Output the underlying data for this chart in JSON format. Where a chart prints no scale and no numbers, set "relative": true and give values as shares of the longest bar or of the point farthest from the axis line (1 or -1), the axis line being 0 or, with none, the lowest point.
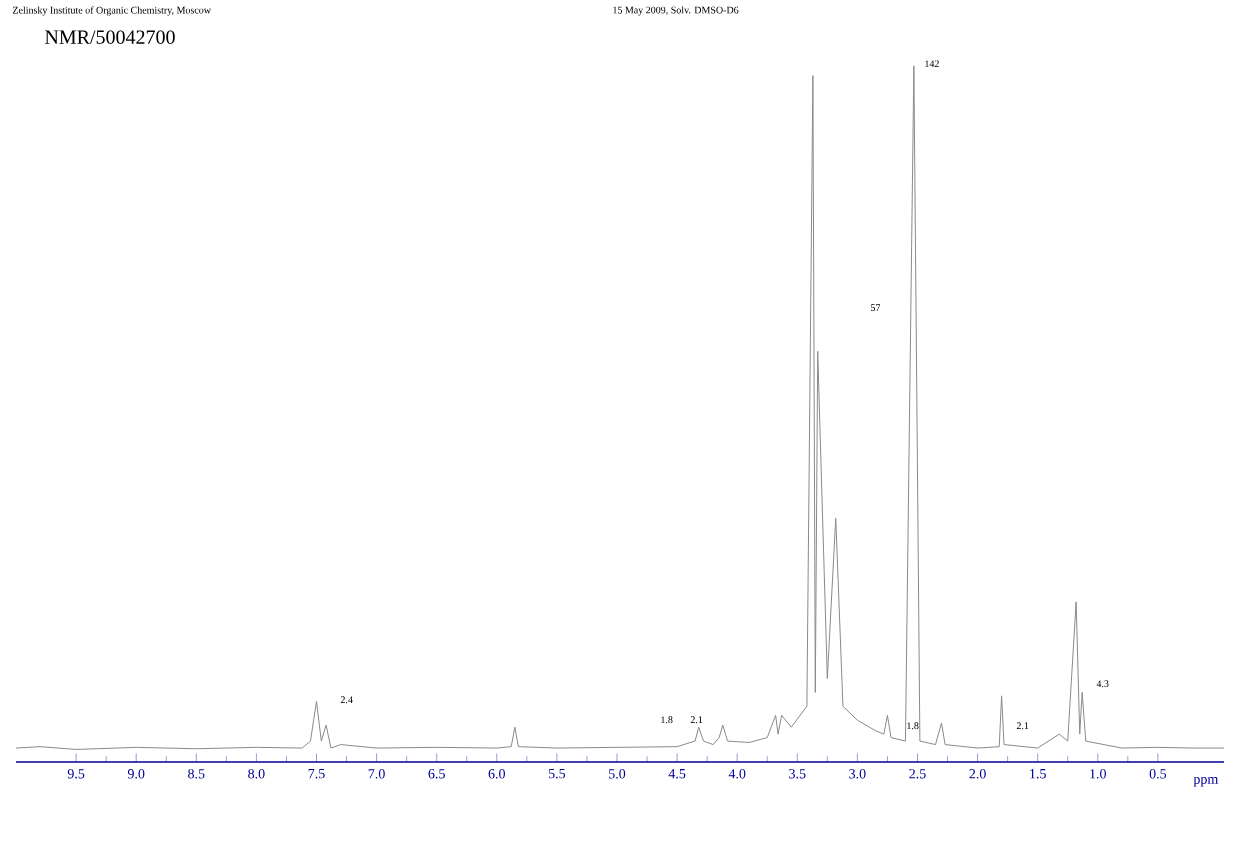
{
  "chart_data": {
    "type": "line",
    "title": "NMR/50042700",
    "relative": true,
    "xlabel": "ppm",
    "xlim": [
      10.0,
      -0.05
    ],
    "xticks": [
      {
        "value": 9.5,
        "label": "9.5"
      },
      {
        "value": 9.0,
        "label": "9.0"
      },
      {
        "value": 8.5,
        "label": "8.5"
      },
      {
        "value": 8.0,
        "label": "8.0"
      },
      {
        "value": 7.5,
        "label": "7.5"
      },
      {
        "value": 7.0,
        "label": "7.0"
      },
      {
        "value": 6.5,
        "label": "6.5"
      },
      {
        "value": 6.0,
        "label": "6.0"
      },
      {
        "value": 5.5,
        "label": "5.5"
      },
      {
        "value": 5.0,
        "label": "5.0"
      },
      {
        "value": 4.5,
        "label": "4.5"
      },
      {
        "value": 4.0,
        "label": "4.0"
      },
      {
        "value": 3.5,
        "label": "3.5"
      },
      {
        "value": 3.0,
        "label": "3.0"
      },
      {
        "value": 2.5,
        "label": "2.5"
      },
      {
        "value": 2.0,
        "label": "2.0"
      },
      {
        "value": 1.5,
        "label": "1.5"
      },
      {
        "value": 1.0,
        "label": "1.0"
      },
      {
        "value": 0.5,
        "label": "0.5"
      }
    ],
    "series": [
      {
        "color": "#8a8a8a",
        "x": [
          10.0,
          9.8,
          9.5,
          9.0,
          8.5,
          8.0,
          7.62,
          7.55,
          7.5,
          7.46,
          7.42,
          7.38,
          7.3,
          7.0,
          6.5,
          6.0,
          5.88,
          5.85,
          5.82,
          5.5,
          5.0,
          4.5,
          4.35,
          4.32,
          4.28,
          4.2,
          4.15,
          4.12,
          4.08,
          3.9,
          3.75,
          3.68,
          3.66,
          3.63,
          3.55,
          3.42,
          3.37,
          3.35,
          3.33,
          3.25,
          3.18,
          3.12,
          3.0,
          2.85,
          2.78,
          2.75,
          2.72,
          2.6,
          2.53,
          2.48,
          2.35,
          2.3,
          2.27,
          2.0,
          1.82,
          1.8,
          1.78,
          1.5,
          1.32,
          1.25,
          1.18,
          1.15,
          1.13,
          1.1,
          0.8,
          0.5,
          0.2,
          -0.05
        ],
        "values": [
          0.02,
          0.022,
          0.018,
          0.021,
          0.019,
          0.021,
          0.02,
          0.03,
          0.087,
          0.03,
          0.053,
          0.02,
          0.025,
          0.02,
          0.021,
          0.02,
          0.022,
          0.05,
          0.022,
          0.02,
          0.021,
          0.022,
          0.03,
          0.05,
          0.03,
          0.025,
          0.035,
          0.053,
          0.03,
          0.028,
          0.035,
          0.067,
          0.04,
          0.067,
          0.05,
          0.08,
          0.986,
          0.1,
          0.59,
          0.12,
          0.35,
          0.08,
          0.06,
          0.045,
          0.04,
          0.067,
          0.035,
          0.03,
          1.0,
          0.03,
          0.025,
          0.056,
          0.025,
          0.02,
          0.022,
          0.095,
          0.025,
          0.02,
          0.04,
          0.03,
          0.23,
          0.04,
          0.1,
          0.03,
          0.02,
          0.021,
          0.02,
          0.02
        ]
      }
    ],
    "annotations": [
      "Zelinsky Institute of Organic Chemistry, Moscow",
      "15 May 2009, Solv. DMSO-D6",
      "2.4",
      "1.8",
      "2.1",
      "57",
      "142",
      "1.8",
      "2.1",
      "4.3"
    ]
  }
}
